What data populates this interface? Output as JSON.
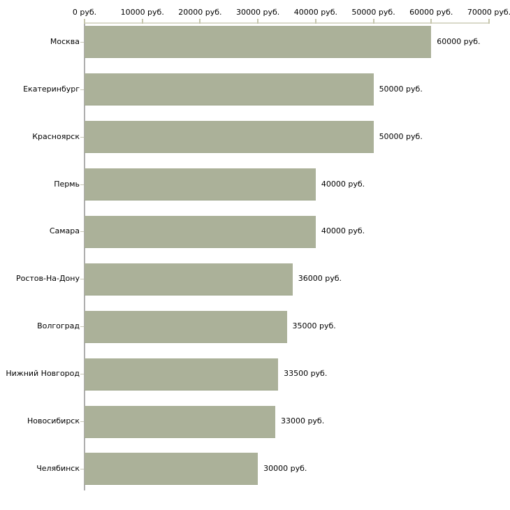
{
  "chart_data": {
    "type": "bar",
    "orientation": "horizontal",
    "title": "",
    "xlabel": "",
    "ylabel": "",
    "xlim": [
      0,
      70000
    ],
    "grid": false,
    "legend": null,
    "x_ticks": [
      {
        "value": 0,
        "label": "0 руб."
      },
      {
        "value": 10000,
        "label": "10000 руб."
      },
      {
        "value": 20000,
        "label": "20000 руб."
      },
      {
        "value": 30000,
        "label": "30000 руб."
      },
      {
        "value": 40000,
        "label": "40000 руб."
      },
      {
        "value": 50000,
        "label": "50000 руб."
      },
      {
        "value": 60000,
        "label": "60000 руб."
      },
      {
        "value": 70000,
        "label": "70000 руб."
      }
    ],
    "categories": [
      "Москва",
      "Екатеринбург",
      "Красноярск",
      "Пермь",
      "Самара",
      "Ростов-На-Дону",
      "Волгоград",
      "Нижний Новгород",
      "Новосибирск",
      "Челябинск"
    ],
    "values": [
      60000,
      50000,
      50000,
      40000,
      40000,
      36000,
      35000,
      33500,
      33000,
      30000
    ],
    "value_labels": [
      "60000 руб.",
      "50000 руб.",
      "50000 руб.",
      "40000 руб.",
      "40000 руб.",
      "36000 руб.",
      "35000 руб.",
      "33500 руб.",
      "33000 руб.",
      "30000 руб."
    ],
    "bar_color": "#abb199",
    "axis_line_color": "#d9d9c9",
    "baseline_color": "#aeaeae",
    "text_color": "#000000"
  }
}
